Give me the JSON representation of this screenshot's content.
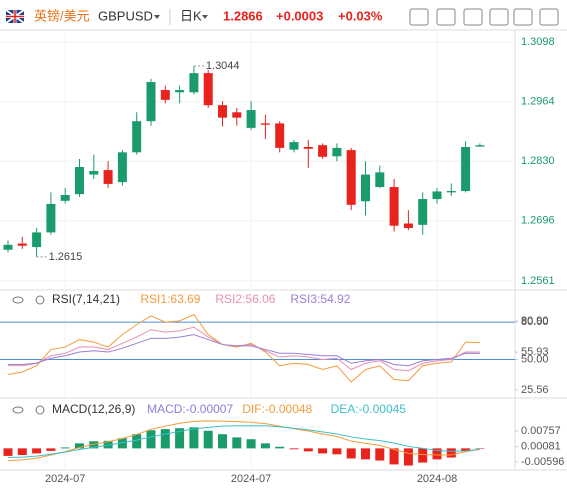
{
  "header": {
    "name": "英镑/美元",
    "symbol": "GBPUSD",
    "period": "日K",
    "price": "1.2866",
    "change": "+0.0003",
    "change_pct": "+0.03%"
  },
  "chart_data": [
    {
      "type": "candlestick",
      "categories": [
        null,
        null,
        null,
        null,
        "2024-07",
        null,
        null,
        null,
        null,
        null,
        null,
        null,
        null,
        null,
        null,
        null,
        null,
        "2024-07",
        null,
        null,
        null,
        null,
        null,
        null,
        null,
        null,
        null,
        null,
        null,
        null,
        "2024-08",
        null,
        null,
        null
      ],
      "open": [
        1.2631,
        1.2645,
        1.2637,
        1.267,
        1.2741,
        1.2756,
        1.28,
        1.281,
        1.2783,
        1.285,
        1.292,
        1.299,
        1.2985,
        1.2985,
        1.3028,
        1.2956,
        1.294,
        1.2905,
        1.2915,
        1.2915,
        1.2856,
        1.2862,
        1.2866,
        1.2841,
        1.2855,
        1.274,
        1.2772,
        1.2772,
        1.269,
        1.2687,
        1.2745,
        1.276,
        1.2763,
        1.2863
      ],
      "high": [
        1.2652,
        1.266,
        1.268,
        1.276,
        1.277,
        1.2835,
        1.2845,
        1.283,
        1.2855,
        1.294,
        1.3015,
        1.3,
        1.3,
        1.3044,
        1.3035,
        1.2965,
        1.295,
        1.2965,
        1.2935,
        1.292,
        1.2878,
        1.2878,
        1.287,
        1.287,
        1.286,
        1.283,
        1.282,
        1.279,
        1.272,
        1.276,
        1.277,
        1.278,
        1.2875,
        1.287
      ],
      "low": [
        1.2625,
        1.2633,
        1.2615,
        1.2665,
        1.2735,
        1.275,
        1.279,
        1.277,
        1.2775,
        1.2845,
        1.291,
        1.296,
        1.296,
        1.298,
        1.295,
        1.2908,
        1.291,
        1.29,
        1.288,
        1.285,
        1.285,
        1.2815,
        1.2835,
        1.283,
        1.272,
        1.2708,
        1.277,
        1.2672,
        1.2675,
        1.2665,
        1.2735,
        1.2752,
        1.276,
        1.2862
      ],
      "close": [
        1.2642,
        1.264,
        1.267,
        1.2734,
        1.2754,
        1.2817,
        1.2808,
        1.2779,
        1.285,
        1.292,
        1.3008,
        1.2968,
        1.299,
        1.3028,
        1.2956,
        1.2928,
        1.2928,
        1.2945,
        1.2912,
        1.286,
        1.2873,
        1.2858,
        1.284,
        1.286,
        1.2732,
        1.28,
        1.2805,
        1.2685,
        1.268,
        1.2745,
        1.2762,
        1.2763,
        1.2862,
        1.2866
      ],
      "up_color": "#1a9b6b",
      "down_color": "#e8221c",
      "ylim": [
        1.2545,
        1.3125
      ],
      "yticks": [
        1.2561,
        1.2696,
        {
          "value": 1.283,
          "label": "1.2830"
        },
        1.2964,
        1.3098
      ],
      "grid": true,
      "annotations": [
        {
          "value": 1.3044,
          "label": "1.3044"
        },
        {
          "value": 1.2615,
          "label": "1.2615"
        }
      ]
    },
    {
      "type": "line",
      "title": "RSI(7,14,21)",
      "series": [
        {
          "name": "RSI1:63.69",
          "color": "#f39c3c",
          "values": [
            38,
            40,
            45,
            58,
            60,
            66,
            64,
            60,
            70,
            78,
            85,
            80,
            81,
            86,
            70,
            62,
            60,
            63,
            56,
            45,
            47,
            46,
            42,
            45,
            32,
            42,
            45,
            34,
            33,
            45,
            47,
            48,
            64,
            63.69
          ]
        },
        {
          "name": "RSI2:56.06",
          "color": "#e78fb3",
          "values": [
            45,
            45,
            47,
            53,
            55,
            60,
            60,
            58,
            63,
            68,
            74,
            72,
            73,
            76,
            68,
            62,
            61,
            62,
            57,
            52,
            53,
            52,
            50,
            51,
            42,
            47,
            49,
            42,
            41,
            47,
            49,
            50,
            56,
            56.06
          ]
        },
        {
          "name": "RSI3:54.92",
          "color": "#9b7fd6",
          "values": [
            46,
            46,
            47,
            51,
            53,
            56,
            57,
            56,
            59,
            63,
            67,
            67,
            68,
            70,
            66,
            62,
            61,
            61,
            58,
            55,
            55,
            54,
            53,
            53,
            47,
            49,
            50,
            46,
            45,
            49,
            50,
            51,
            55,
            54.92
          ]
        }
      ],
      "ylim": [
        21.55,
        88.12
      ],
      "yticks": [
        25.56,
        {
          "value": 50,
          "label": "50.00"
        },
        55.93,
        {
          "value": 80,
          "label": "80.00"
        },
        {
          "value": 80.9,
          "label": "80.90"
        }
      ],
      "reference_lines": [
        80,
        50
      ],
      "reference_color": "#4a90d9"
    },
    {
      "type": "macd",
      "title": "MACD(12,26,9)",
      "series": [
        {
          "name": "MACD:-0.00007",
          "color": "#8a7fe0",
          "up_color": "#1a9b6b",
          "down_color": "#e8221c",
          "values": [
            -0.0033,
            -0.0029,
            -0.0022,
            -0.0011,
            0.0004,
            0.0022,
            0.0031,
            0.0033,
            0.0044,
            0.0062,
            0.0079,
            0.0084,
            0.0088,
            0.0092,
            0.0077,
            0.0062,
            0.0048,
            0.004,
            0.0022,
            0.0007,
            -0.0004,
            -0.0013,
            -0.0022,
            -0.0026,
            -0.0044,
            -0.0048,
            -0.0053,
            -0.007,
            -0.0075,
            -0.0062,
            -0.0048,
            -0.004,
            -0.0013,
            -7e-05
          ]
        },
        {
          "name": "DIF:-0.00048",
          "color": "#f39c3c",
          "values": [
            -0.0054,
            -0.005,
            -0.0043,
            -0.0029,
            -0.0014,
            0.0004,
            0.0018,
            0.0029,
            0.0043,
            0.0061,
            0.0083,
            0.0097,
            0.011,
            0.0118,
            0.012,
            0.0119,
            0.0117,
            0.0114,
            0.0108,
            0.0097,
            0.0086,
            0.0076,
            0.0063,
            0.0052,
            0.0032,
            0.0022,
            0.0013,
            -0.0005,
            -0.0022,
            -0.0027,
            -0.0029,
            -0.0029,
            -0.0014,
            -0.00048
          ]
        },
        {
          "name": "DEA:-0.00045",
          "color": "#3fbfc8",
          "values": [
            -0.004,
            -0.0038,
            -0.0034,
            -0.0025,
            -0.0016,
            -0.0005,
            0.0005,
            0.0014,
            0.0025,
            0.0036,
            0.005,
            0.0063,
            0.0074,
            0.0085,
            0.0092,
            0.0097,
            0.0099,
            0.0099,
            0.0099,
            0.0094,
            0.0088,
            0.0081,
            0.0072,
            0.0063,
            0.005,
            0.0041,
            0.0034,
            0.0023,
            0.0009,
            0.0,
            -0.0009,
            -0.0013,
            -0.0011,
            -0.00045
          ]
        }
      ],
      "ylim": [
        -0.00945,
        0.0124
      ],
      "yticks": [
        -0.00596,
        0.00081,
        0.00757
      ]
    }
  ]
}
